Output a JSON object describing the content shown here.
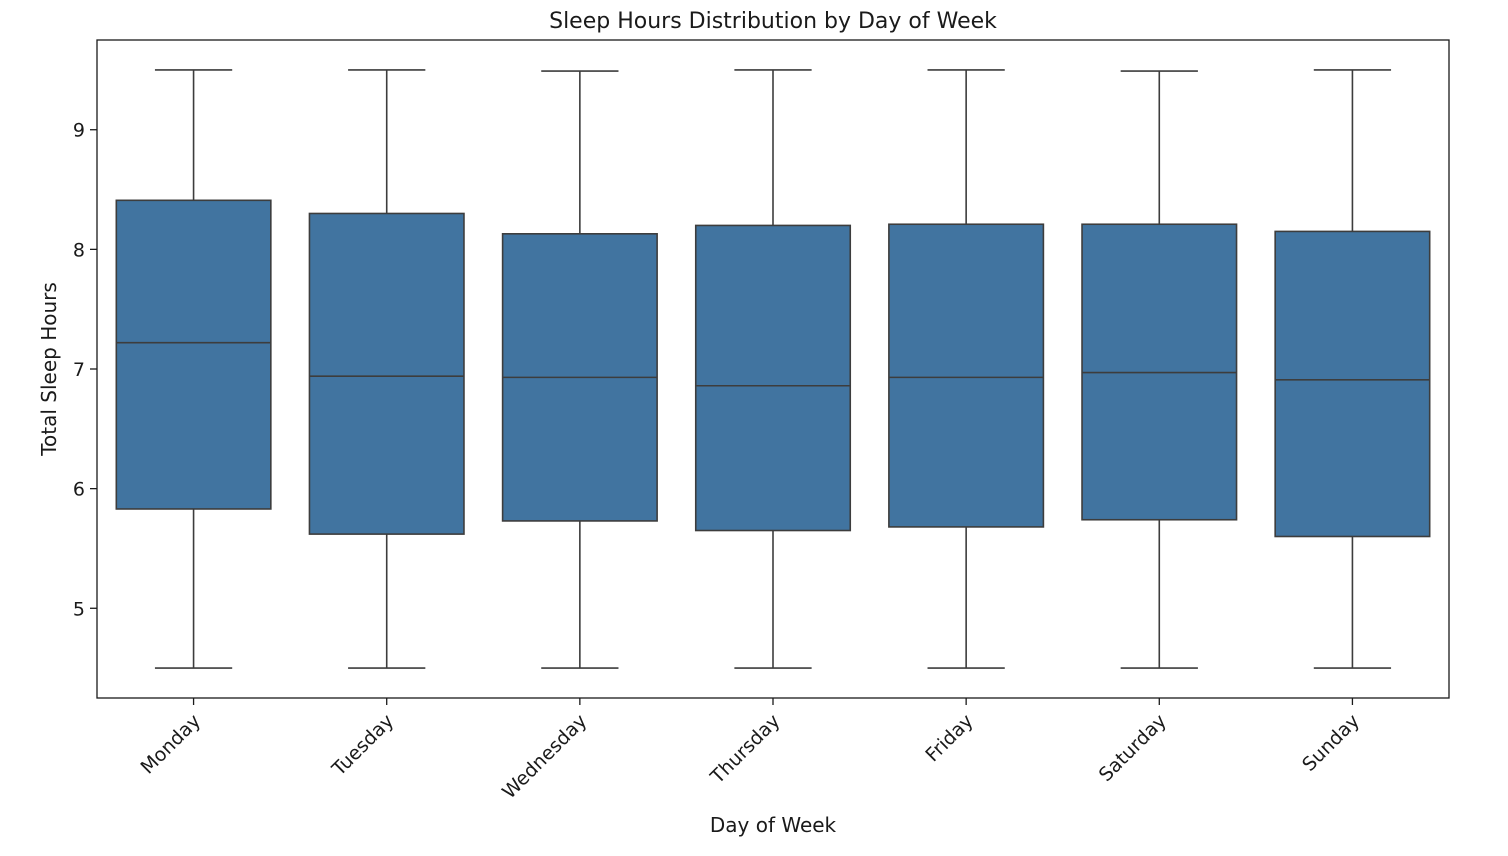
{
  "chart_data": {
    "type": "box",
    "title": "Sleep Hours Distribution by Day of Week",
    "xlabel": "Day of Week",
    "ylabel": "Total Sleep Hours",
    "ylim": [
      4.25,
      9.75
    ],
    "yticks": [
      5,
      6,
      7,
      8,
      9
    ],
    "grid": false,
    "legend": "none",
    "box_color": "#4174a0",
    "edge_color": "#3d3d3d",
    "categories": [
      "Monday",
      "Tuesday",
      "Wednesday",
      "Thursday",
      "Friday",
      "Saturday",
      "Sunday"
    ],
    "boxes": [
      {
        "whisker_low": 4.5,
        "q1": 5.83,
        "median": 7.22,
        "q3": 8.41,
        "whisker_high": 9.5
      },
      {
        "whisker_low": 4.5,
        "q1": 5.62,
        "median": 6.94,
        "q3": 8.3,
        "whisker_high": 9.5
      },
      {
        "whisker_low": 4.5,
        "q1": 5.73,
        "median": 6.93,
        "q3": 8.13,
        "whisker_high": 9.49
      },
      {
        "whisker_low": 4.5,
        "q1": 5.65,
        "median": 6.86,
        "q3": 8.2,
        "whisker_high": 9.5
      },
      {
        "whisker_low": 4.5,
        "q1": 5.68,
        "median": 6.93,
        "q3": 8.21,
        "whisker_high": 9.5
      },
      {
        "whisker_low": 4.5,
        "q1": 5.74,
        "median": 6.97,
        "q3": 8.21,
        "whisker_high": 9.49
      },
      {
        "whisker_low": 4.5,
        "q1": 5.6,
        "median": 6.91,
        "q3": 8.15,
        "whisker_high": 9.5
      }
    ]
  }
}
